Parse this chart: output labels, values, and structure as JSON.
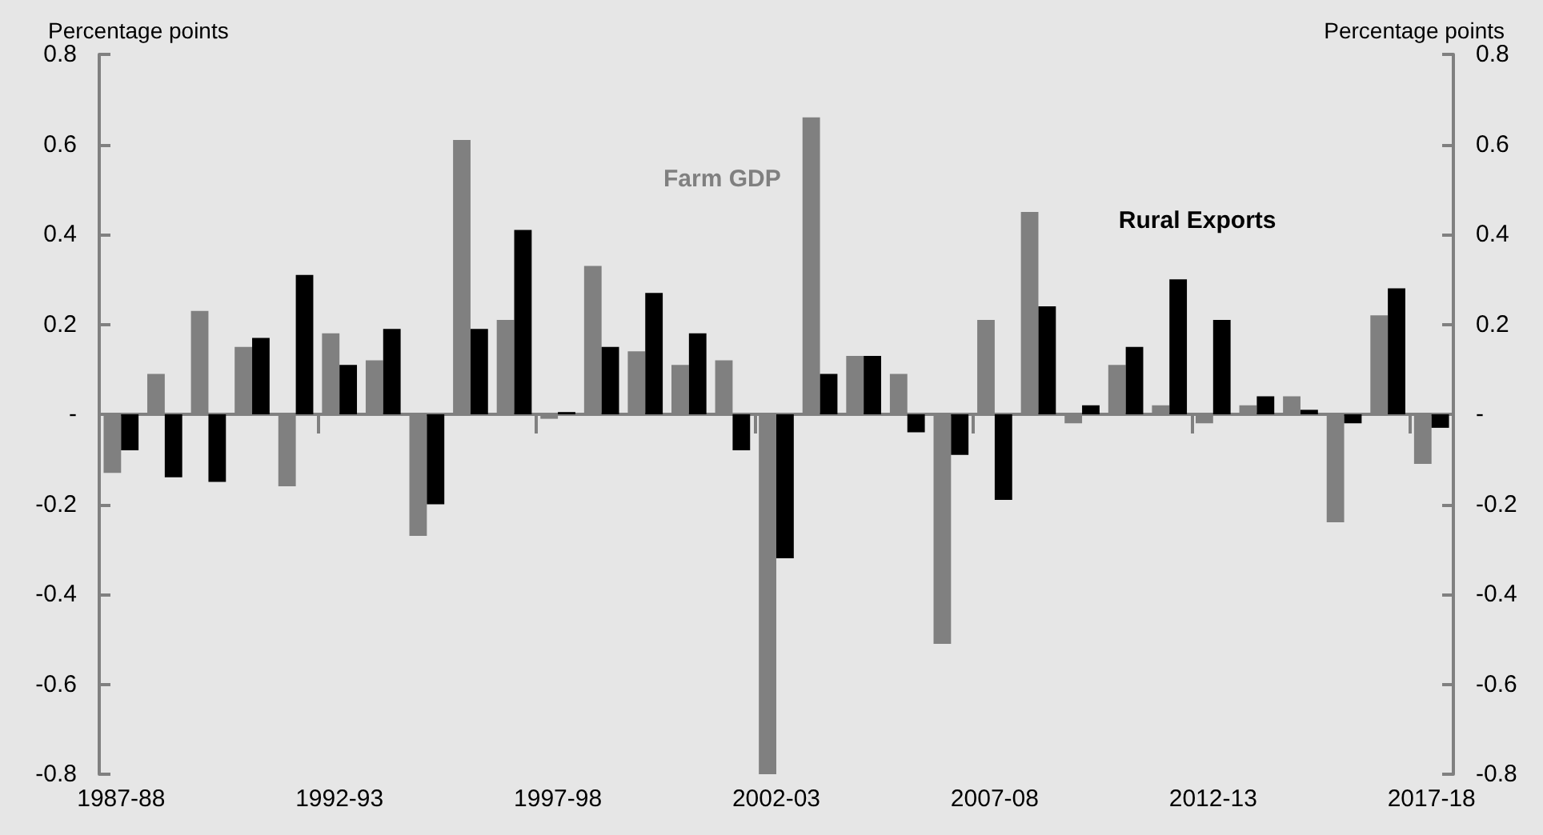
{
  "chart_data": {
    "type": "bar",
    "categories": [
      "1987-88",
      null,
      null,
      null,
      null,
      "1992-93",
      null,
      null,
      null,
      null,
      "1997-98",
      null,
      null,
      null,
      null,
      "2002-03",
      null,
      null,
      null,
      null,
      "2007-08",
      null,
      null,
      null,
      null,
      "2012-13",
      null,
      null,
      null,
      null,
      "2017-18"
    ],
    "series": [
      {
        "name": "Farm GDP",
        "color": "#808080",
        "values": [
          -0.13,
          0.09,
          0.23,
          0.15,
          -0.16,
          0.18,
          0.12,
          -0.27,
          0.61,
          0.21,
          -0.01,
          0.33,
          0.14,
          0.11,
          0.12,
          -0.8,
          0.66,
          0.13,
          0.09,
          -0.51,
          0.21,
          0.45,
          -0.02,
          0.11,
          0.02,
          -0.02,
          0.02,
          0.04,
          -0.24,
          0.22,
          -0.11
        ]
      },
      {
        "name": "Rural Exports",
        "color": "#000000",
        "values": [
          -0.08,
          -0.14,
          -0.15,
          0.17,
          0.31,
          0.11,
          0.19,
          -0.2,
          0.19,
          0.41,
          0.005,
          0.15,
          0.27,
          0.18,
          -0.08,
          -0.32,
          0.09,
          0.13,
          -0.04,
          -0.09,
          -0.19,
          0.24,
          0.02,
          0.15,
          0.3,
          0.21,
          0.04,
          0.01,
          -0.02,
          0.28,
          -0.03
        ]
      }
    ],
    "ylabel": "Percentage points",
    "y2label": "Percentage points",
    "ylim": [
      -0.8,
      0.8
    ],
    "yticks": [
      -0.8,
      -0.6,
      -0.4,
      -0.2,
      {
        "value": 0,
        "label": "-"
      },
      0.2,
      0.4,
      0.6,
      0.8
    ],
    "y2lim": [
      -0.8,
      0.8
    ],
    "y2ticks": [
      -0.8,
      -0.6,
      -0.4,
      -0.2,
      {
        "value": 0,
        "label": "-"
      },
      0.2,
      0.4,
      0.6,
      0.8
    ],
    "legend": false
  }
}
